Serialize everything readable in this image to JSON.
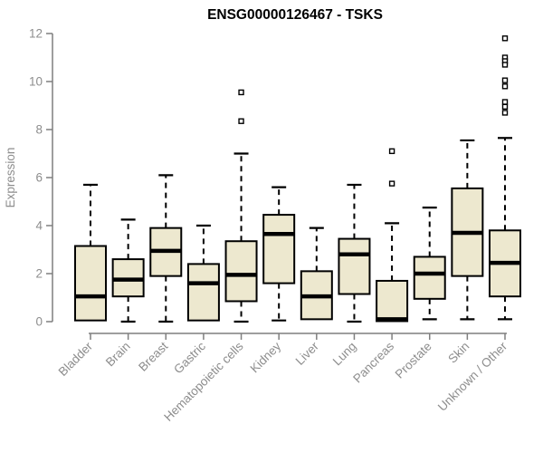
{
  "chart_data": {
    "type": "boxplot",
    "title": "ENSG00000126467 - TSKS",
    "ylabel": "Expression",
    "xlabel": "",
    "ylim": [
      0,
      12
    ],
    "yticks": [
      0,
      2,
      4,
      6,
      8,
      10,
      12
    ],
    "grid": false,
    "legend": "none",
    "categories": [
      "Bladder",
      "Brain",
      "Breast",
      "Gastric",
      "Hematopoietic cells",
      "Kidney",
      "Liver",
      "Lung",
      "Pancreas",
      "Prostate",
      "Skin",
      "Unknown / Other"
    ],
    "boxes": [
      {
        "category": "Bladder",
        "whisker_low": 0.05,
        "q1": 0.05,
        "median": 1.05,
        "q3": 3.15,
        "whisker_high": 5.7,
        "outliers": []
      },
      {
        "category": "Brain",
        "whisker_low": 0.0,
        "q1": 1.05,
        "median": 1.75,
        "q3": 2.6,
        "whisker_high": 4.25,
        "outliers": []
      },
      {
        "category": "Breast",
        "whisker_low": 0.0,
        "q1": 1.9,
        "median": 2.95,
        "q3": 3.9,
        "whisker_high": 6.1,
        "outliers": []
      },
      {
        "category": "Gastric",
        "whisker_low": 0.05,
        "q1": 0.05,
        "median": 1.6,
        "q3": 2.4,
        "whisker_high": 4.0,
        "outliers": []
      },
      {
        "category": "Hematopoietic cells",
        "whisker_low": 0.0,
        "q1": 0.85,
        "median": 1.95,
        "q3": 3.35,
        "whisker_high": 7.0,
        "outliers": [
          9.55,
          8.35
        ]
      },
      {
        "category": "Kidney",
        "whisker_low": 0.05,
        "q1": 1.6,
        "median": 3.65,
        "q3": 4.45,
        "whisker_high": 5.6,
        "outliers": []
      },
      {
        "category": "Liver",
        "whisker_low": 0.1,
        "q1": 0.1,
        "median": 1.05,
        "q3": 2.1,
        "whisker_high": 3.9,
        "outliers": []
      },
      {
        "category": "Lung",
        "whisker_low": 0.0,
        "q1": 1.15,
        "median": 2.8,
        "q3": 3.45,
        "whisker_high": 5.7,
        "outliers": []
      },
      {
        "category": "Pancreas",
        "whisker_low": 0.0,
        "q1": 0.02,
        "median": 0.1,
        "q3": 1.7,
        "whisker_high": 4.1,
        "outliers": [
          7.1,
          5.75
        ]
      },
      {
        "category": "Prostate",
        "whisker_low": 0.1,
        "q1": 0.95,
        "median": 2.0,
        "q3": 2.7,
        "whisker_high": 4.75,
        "outliers": []
      },
      {
        "category": "Skin",
        "whisker_low": 0.1,
        "q1": 1.9,
        "median": 3.7,
        "q3": 5.55,
        "whisker_high": 7.55,
        "outliers": []
      },
      {
        "category": "Unknown / Other",
        "whisker_low": 0.1,
        "q1": 1.05,
        "median": 2.45,
        "q3": 3.8,
        "whisker_high": 7.65,
        "outliers": [
          11.8,
          11.0,
          10.85,
          10.7,
          10.05,
          9.8,
          9.15,
          8.95,
          8.7
        ]
      }
    ],
    "style": {
      "box_fill": "#EDE8CF",
      "box_stroke": "#000000",
      "median_color": "#000000",
      "whisker_color": "#000000",
      "outlier_fill": "#ffffff",
      "axis_color": "#7f7f7f",
      "tick_label_color": "#8d8d8d",
      "title_color": "#000000",
      "background": "#ffffff"
    }
  }
}
